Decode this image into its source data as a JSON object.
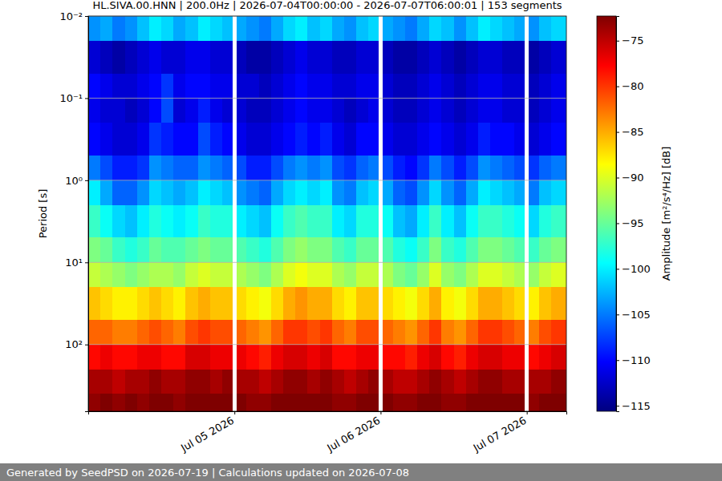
{
  "chart_data": {
    "type": "heatmap",
    "title": "HL.SIVA.00.HNN | 200.0Hz | 2026-07-04T00:00:00 - 2026-07-07T06:00:01 | 153 segments",
    "y_label": "Period [s]",
    "footer": "Generated by SeedPSD on 2026-07-19 | Calculations updated on 2026-07-08",
    "log": "y",
    "grid": true,
    "xlim": [
      "2026-07-04T00:00",
      "2026-07-07T06:30"
    ],
    "xticks": [
      {
        "value": "2026-07-05T00:00",
        "label": "Jul 05 2026"
      },
      {
        "value": "2026-07-06T00:00",
        "label": "Jul 06 2026"
      },
      {
        "value": "2026-07-07T00:00",
        "label": "Jul 07 2026"
      }
    ],
    "ylim": [
      0.01,
      650
    ],
    "yticks": [
      {
        "value": 0.01,
        "label": "10⁻²"
      },
      {
        "value": 0.1,
        "label": "10⁻¹"
      },
      {
        "value": 1,
        "label": "10⁰"
      },
      {
        "value": 10,
        "label": "10¹"
      },
      {
        "value": 100,
        "label": "10²"
      }
    ],
    "colorbar": {
      "label": "Amplitude [m²/s⁴/Hz] [dB]",
      "range": [
        -115.6,
        -72.3
      ],
      "ticks": [
        {
          "value": -115,
          "label": "−115"
        },
        {
          "value": -110,
          "label": "−110"
        },
        {
          "value": -105,
          "label": "−105"
        },
        {
          "value": -100,
          "label": "−100"
        },
        {
          "value": -95,
          "label": "−95"
        },
        {
          "value": -90,
          "label": "−90"
        },
        {
          "value": -85,
          "label": "−85"
        },
        {
          "value": -80,
          "label": "−80"
        },
        {
          "value": -75,
          "label": "−75"
        }
      ]
    },
    "x_edges": [
      "2026-07-04T00:00",
      "2026-07-04T02:00",
      "2026-07-04T04:00",
      "2026-07-04T06:00",
      "2026-07-04T08:00",
      "2026-07-04T10:00",
      "2026-07-04T12:00",
      "2026-07-04T14:00",
      "2026-07-04T16:00",
      "2026-07-04T18:00",
      "2026-07-04T20:00",
      "2026-07-04T22:00",
      "2026-07-04T23:40",
      "2026-07-05T00:20",
      "2026-07-05T02:00",
      "2026-07-05T04:00",
      "2026-07-05T06:00",
      "2026-07-05T08:00",
      "2026-07-05T10:00",
      "2026-07-05T12:00",
      "2026-07-05T14:00",
      "2026-07-05T16:00",
      "2026-07-05T18:00",
      "2026-07-05T20:00",
      "2026-07-05T22:00",
      "2026-07-05T23:40",
      "2026-07-06T00:20",
      "2026-07-06T02:00",
      "2026-07-06T04:00",
      "2026-07-06T06:00",
      "2026-07-06T08:00",
      "2026-07-06T10:00",
      "2026-07-06T12:00",
      "2026-07-06T14:00",
      "2026-07-06T16:00",
      "2026-07-06T18:00",
      "2026-07-06T20:00",
      "2026-07-06T22:00",
      "2026-07-06T23:40",
      "2026-07-07T00:20",
      "2026-07-07T02:00",
      "2026-07-07T04:00",
      "2026-07-07T06:30"
    ],
    "y_edges": [
      0.01,
      0.02,
      0.05,
      0.1,
      0.2,
      0.5,
      1,
      2,
      5,
      10,
      20,
      50,
      100,
      200,
      400,
      650
    ],
    "cells": [
      [
        -104,
        -112,
        -110,
        -111,
        -110,
        -105,
        -100,
        -97,
        -94,
        -91,
        -86,
        -82,
        -78,
        -74,
        -73
      ],
      [
        -103,
        -113,
        -111,
        -112,
        -111,
        -107,
        -103,
        -99,
        -95,
        -92,
        -87,
        -82,
        -77,
        -74,
        -72
      ],
      [
        -105,
        -114,
        -112,
        -112,
        -112,
        -109,
        -106,
        -101,
        -97,
        -93,
        -88,
        -83,
        -78,
        -75,
        -73
      ],
      [
        -104,
        -113,
        -112,
        -113,
        -112,
        -109,
        -106,
        -102,
        -98,
        -94,
        -88,
        -83,
        -78,
        -74,
        -72
      ],
      [
        -102,
        -112,
        -111,
        -112,
        -111,
        -108,
        -104,
        -100,
        -97,
        -93,
        -87,
        -82,
        -77,
        -74,
        -73
      ],
      [
        -100,
        -111,
        -110,
        -110,
        -108,
        -104,
        -101,
        -98,
        -95,
        -92,
        -86,
        -81,
        -77,
        -73,
        -72
      ],
      [
        -101,
        -112,
        -108,
        -107,
        -109,
        -105,
        -102,
        -99,
        -96,
        -92,
        -87,
        -82,
        -78,
        -74,
        -72
      ],
      [
        -103,
        -112,
        -111,
        -112,
        -110,
        -106,
        -103,
        -100,
        -96,
        -93,
        -88,
        -83,
        -78,
        -74,
        -73
      ],
      [
        -102,
        -111,
        -110,
        -111,
        -110,
        -106,
        -102,
        -99,
        -95,
        -91,
        -86,
        -81,
        -76,
        -73,
        -72
      ],
      [
        -100,
        -111,
        -110,
        -109,
        -107,
        -104,
        -100,
        -97,
        -94,
        -90,
        -85,
        -80,
        -76,
        -73,
        -72
      ],
      [
        -101,
        -112,
        -111,
        -111,
        -109,
        -105,
        -101,
        -98,
        -95,
        -91,
        -86,
        -81,
        -77,
        -74,
        -72
      ],
      [
        -102,
        -112,
        -111,
        -112,
        -110,
        -106,
        -102,
        -98,
        -95,
        -91,
        -86,
        -81,
        -77,
        -73,
        -72
      ],
      [
        null,
        null,
        null,
        null,
        null,
        null,
        null,
        null,
        null,
        null,
        null,
        null,
        null,
        null,
        null
      ],
      [
        -103,
        -113,
        -112,
        -112,
        -111,
        -107,
        -104,
        -100,
        -96,
        -92,
        -87,
        -82,
        -77,
        -74,
        -72
      ],
      [
        -104,
        -114,
        -112,
        -113,
        -112,
        -109,
        -105,
        -101,
        -97,
        -93,
        -88,
        -83,
        -78,
        -74,
        -73
      ],
      [
        -105,
        -114,
        -113,
        -113,
        -112,
        -109,
        -106,
        -102,
        -98,
        -94,
        -89,
        -84,
        -79,
        -75,
        -73
      ],
      [
        -103,
        -113,
        -112,
        -112,
        -111,
        -107,
        -103,
        -99,
        -96,
        -92,
        -87,
        -82,
        -77,
        -74,
        -72
      ],
      [
        -101,
        -112,
        -111,
        -111,
        -110,
        -105,
        -101,
        -97,
        -94,
        -90,
        -85,
        -80,
        -76,
        -73,
        -72
      ],
      [
        -100,
        -111,
        -110,
        -110,
        -109,
        -104,
        -100,
        -96,
        -93,
        -89,
        -84,
        -80,
        -76,
        -73,
        -72
      ],
      [
        -102,
        -112,
        -111,
        -111,
        -110,
        -105,
        -101,
        -97,
        -94,
        -90,
        -85,
        -81,
        -77,
        -74,
        -72
      ],
      [
        -101,
        -112,
        -111,
        -111,
        -109,
        -104,
        -100,
        -97,
        -94,
        -90,
        -85,
        -80,
        -76,
        -73,
        -72
      ],
      [
        -103,
        -113,
        -112,
        -112,
        -111,
        -107,
        -104,
        -100,
        -96,
        -92,
        -87,
        -82,
        -78,
        -74,
        -73
      ],
      [
        -104,
        -113,
        -112,
        -113,
        -112,
        -108,
        -105,
        -101,
        -97,
        -93,
        -88,
        -83,
        -78,
        -75,
        -73
      ],
      [
        -102,
        -112,
        -111,
        -112,
        -110,
        -106,
        -102,
        -98,
        -95,
        -91,
        -86,
        -81,
        -77,
        -74,
        -72
      ],
      [
        -101,
        -112,
        -111,
        -111,
        -110,
        -105,
        -101,
        -98,
        -95,
        -91,
        -86,
        -81,
        -77,
        -73,
        -72
      ],
      [
        null,
        null,
        null,
        null,
        null,
        null,
        null,
        null,
        null,
        null,
        null,
        null,
        null,
        null,
        null
      ],
      [
        -103,
        -113,
        -112,
        -112,
        -111,
        -107,
        -103,
        -99,
        -96,
        -92,
        -87,
        -82,
        -78,
        -74,
        -72
      ],
      [
        -104,
        -114,
        -113,
        -113,
        -112,
        -109,
        -106,
        -102,
        -98,
        -94,
        -88,
        -83,
        -78,
        -75,
        -73
      ],
      [
        -105,
        -114,
        -113,
        -113,
        -112,
        -110,
        -107,
        -103,
        -99,
        -95,
        -89,
        -84,
        -79,
        -75,
        -73
      ],
      [
        -103,
        -113,
        -112,
        -112,
        -111,
        -108,
        -104,
        -100,
        -97,
        -93,
        -87,
        -82,
        -77,
        -74,
        -72
      ],
      [
        -101,
        -112,
        -111,
        -111,
        -110,
        -105,
        -101,
        -97,
        -94,
        -90,
        -85,
        -80,
        -76,
        -73,
        -72
      ],
      [
        -102,
        -113,
        -112,
        -112,
        -111,
        -107,
        -104,
        -100,
        -97,
        -93,
        -88,
        -83,
        -78,
        -74,
        -73
      ],
      [
        -104,
        -114,
        -113,
        -113,
        -112,
        -109,
        -106,
        -102,
        -98,
        -94,
        -89,
        -84,
        -79,
        -75,
        -73
      ],
      [
        -102,
        -113,
        -112,
        -112,
        -111,
        -107,
        -103,
        -99,
        -96,
        -92,
        -87,
        -82,
        -77,
        -74,
        -72
      ],
      [
        -100,
        -112,
        -111,
        -111,
        -109,
        -104,
        -100,
        -97,
        -94,
        -90,
        -85,
        -80,
        -76,
        -73,
        -72
      ],
      [
        -101,
        -112,
        -111,
        -111,
        -110,
        -105,
        -101,
        -97,
        -94,
        -90,
        -85,
        -80,
        -76,
        -73,
        -72
      ],
      [
        -102,
        -113,
        -112,
        -112,
        -110,
        -106,
        -102,
        -98,
        -95,
        -91,
        -86,
        -81,
        -77,
        -74,
        -72
      ],
      [
        -103,
        -113,
        -112,
        -112,
        -111,
        -107,
        -103,
        -99,
        -96,
        -92,
        -87,
        -82,
        -77,
        -74,
        -72
      ],
      [
        null,
        null,
        null,
        null,
        null,
        null,
        null,
        null,
        null,
        null,
        null,
        null,
        null,
        null,
        null
      ],
      [
        -104,
        -114,
        -113,
        -113,
        -112,
        -108,
        -105,
        -101,
        -97,
        -93,
        -88,
        -83,
        -78,
        -74,
        -73
      ],
      [
        -102,
        -113,
        -112,
        -112,
        -111,
        -106,
        -102,
        -98,
        -95,
        -91,
        -86,
        -81,
        -77,
        -74,
        -72
      ],
      [
        -101,
        -112,
        -111,
        -111,
        -110,
        -105,
        -101,
        -97,
        -94,
        -90,
        -85,
        -80,
        -76,
        -73,
        -72
      ]
    ]
  }
}
